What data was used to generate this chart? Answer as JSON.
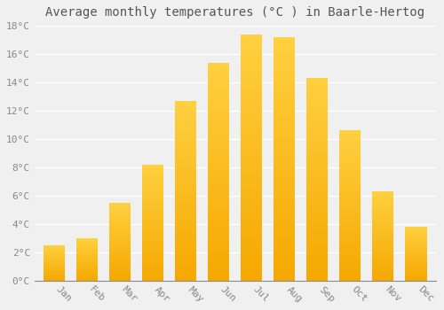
{
  "title": "Average monthly temperatures (°C ) in Baarle-Hertog",
  "months": [
    "Jan",
    "Feb",
    "Mar",
    "Apr",
    "May",
    "Jun",
    "Jul",
    "Aug",
    "Sep",
    "Oct",
    "Nov",
    "Dec"
  ],
  "values": [
    2.5,
    3.0,
    5.5,
    8.2,
    12.7,
    15.4,
    17.4,
    17.2,
    14.3,
    10.6,
    6.3,
    3.8
  ],
  "bar_color_bottom": "#F5A800",
  "bar_color_top": "#FFD040",
  "background_color": "#F0F0F0",
  "grid_color": "#FFFFFF",
  "ylim": [
    0,
    18
  ],
  "yticks": [
    0,
    2,
    4,
    6,
    8,
    10,
    12,
    14,
    16,
    18
  ],
  "ytick_labels": [
    "0°C",
    "2°C",
    "4°C",
    "6°C",
    "8°C",
    "10°C",
    "12°C",
    "14°C",
    "16°C",
    "18°C"
  ],
  "title_fontsize": 10,
  "tick_fontsize": 8,
  "bar_width": 0.65
}
